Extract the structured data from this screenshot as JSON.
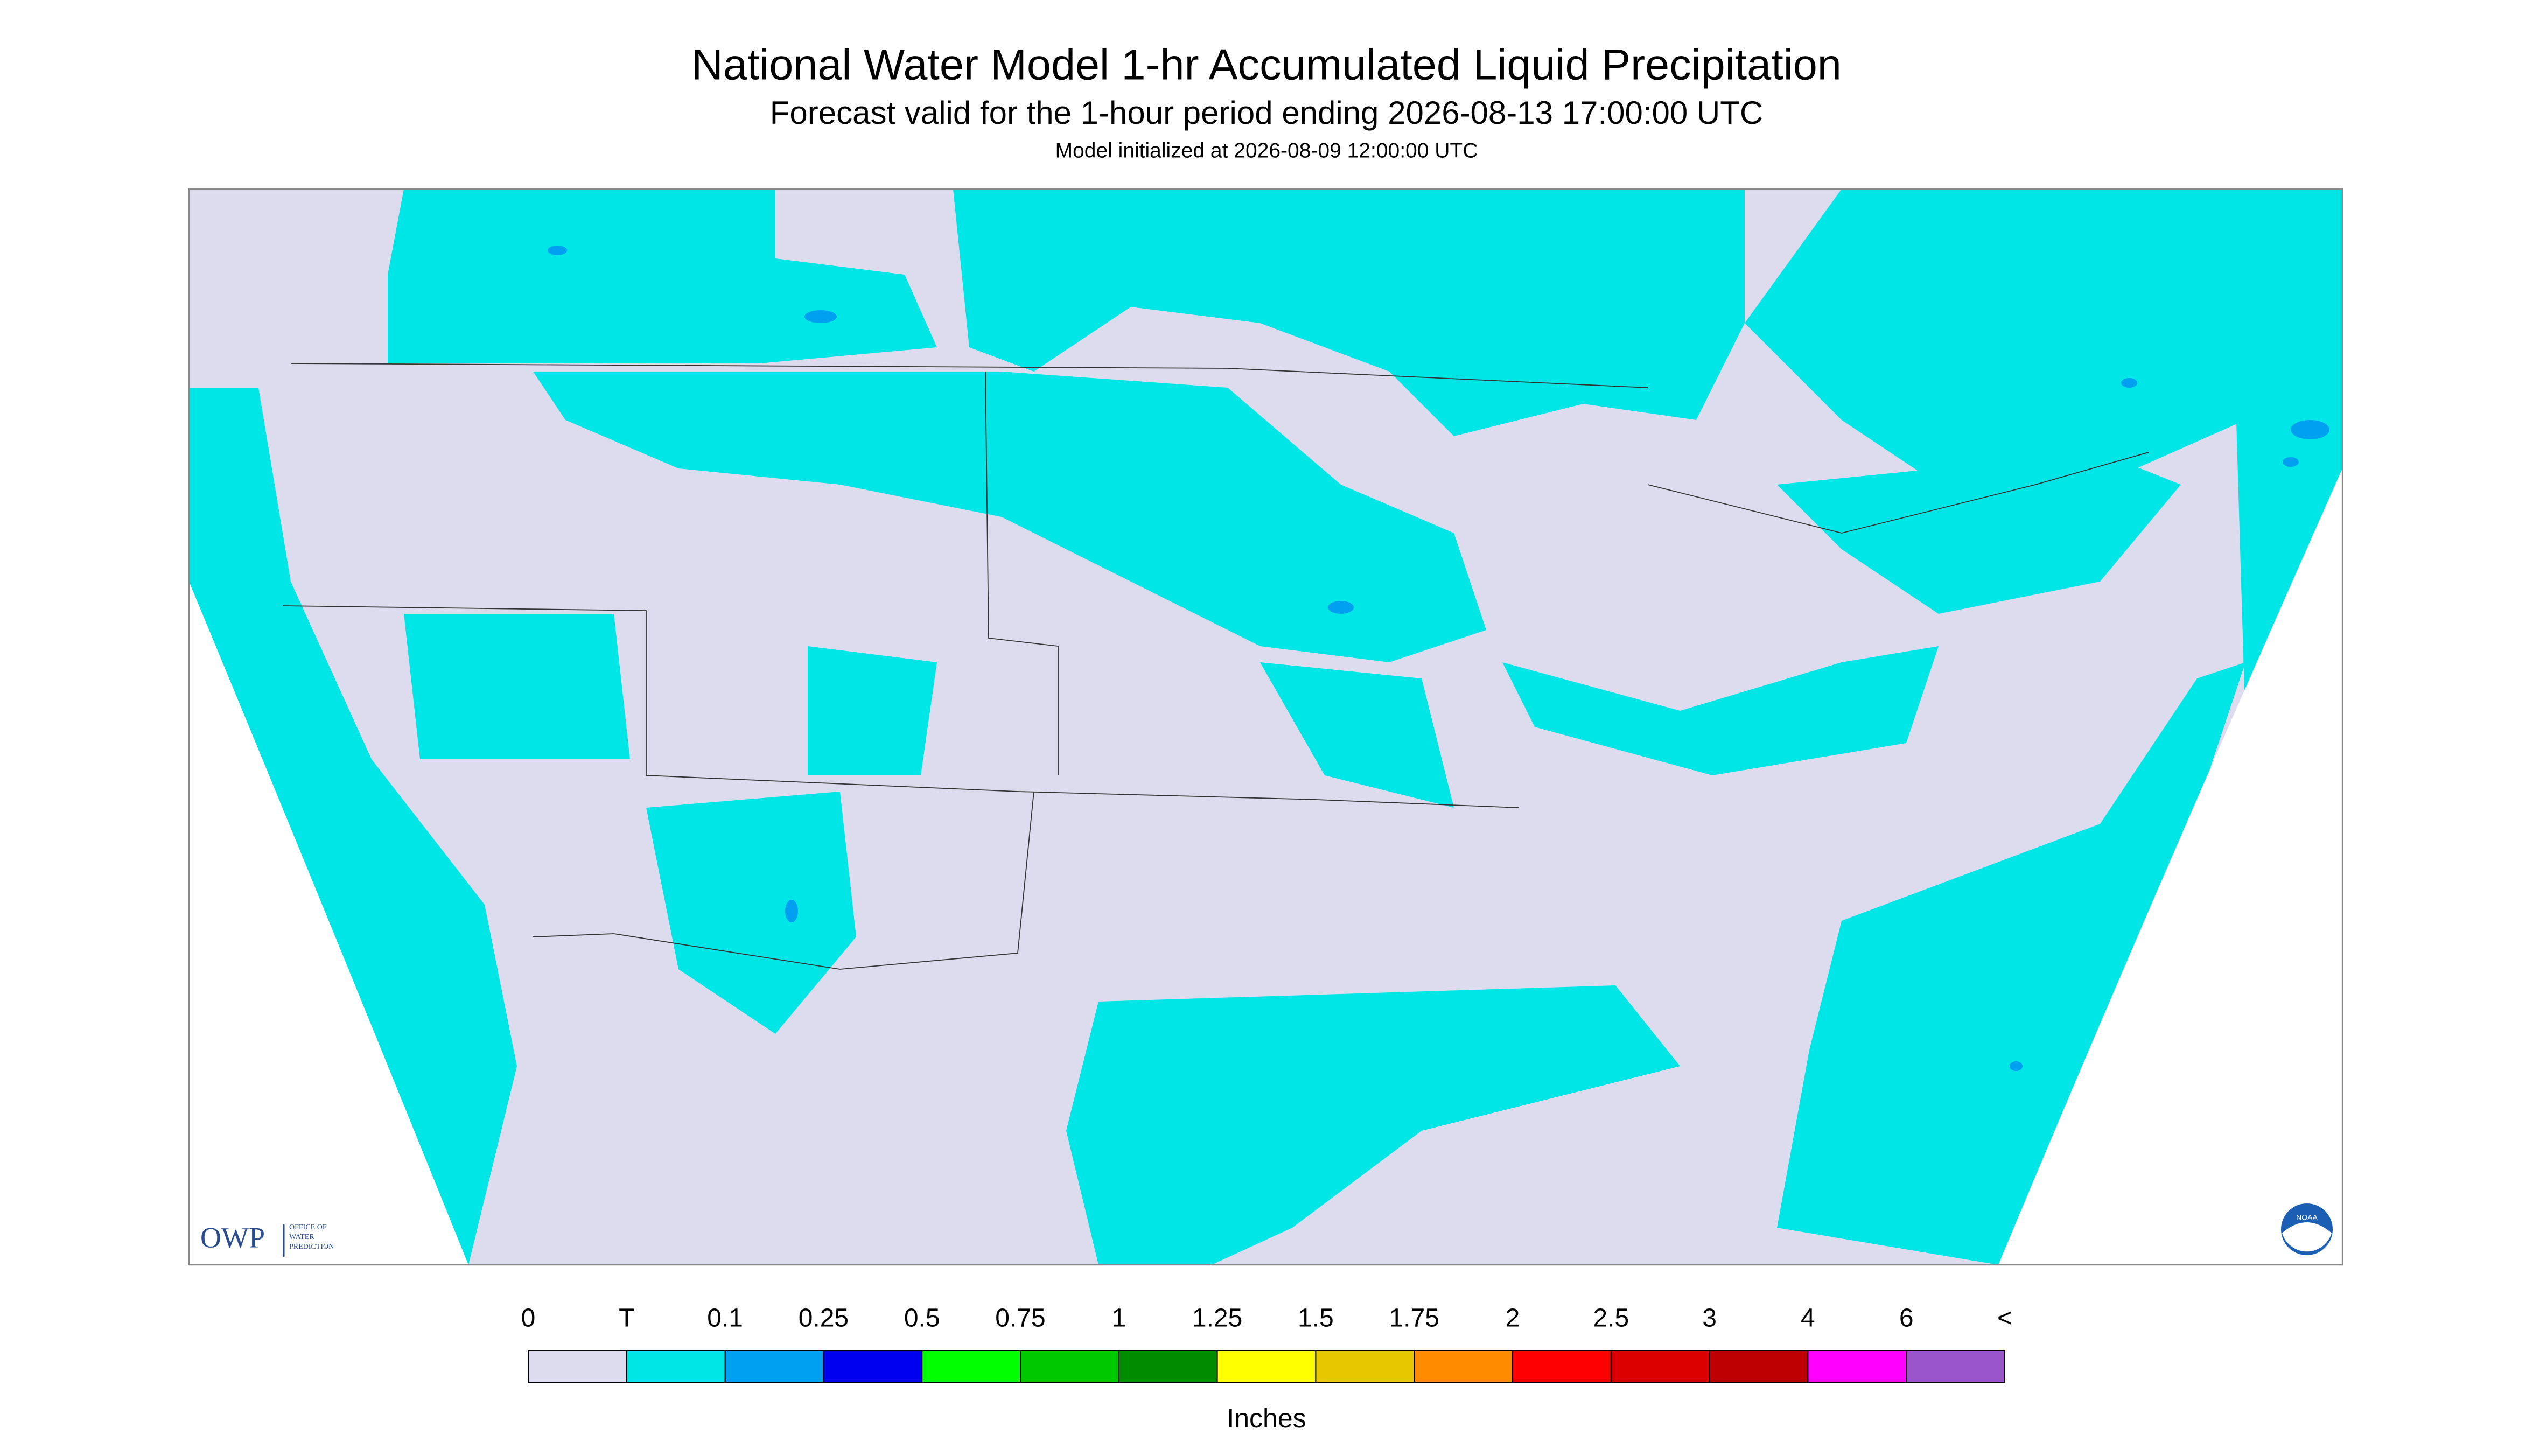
{
  "header": {
    "title": "National Water Model 1-hr Accumulated Liquid Precipitation",
    "subtitle": "Forecast valid for the 1-hour period ending 2026-08-13 17:00:00 UTC",
    "init": "Model initialized at 2026-08-09 12:00:00 UTC"
  },
  "legend": {
    "labels": [
      "0",
      "T",
      "0.1",
      "0.25",
      "0.5",
      "0.75",
      "1",
      "1.25",
      "1.5",
      "1.75",
      "2",
      "2.5",
      "3",
      "4",
      "6",
      "<"
    ],
    "colors": [
      "#dcdcee",
      "#00e6e6",
      "#00a0f0",
      "#0000f0",
      "#00ff00",
      "#00c800",
      "#008c00",
      "#ffff00",
      "#e6c800",
      "#ff8c00",
      "#ff0000",
      "#dc0000",
      "#be0000",
      "#ff00ff",
      "#9955c9"
    ],
    "unit": "Inches"
  },
  "logo": {
    "owp": "OWP",
    "office": [
      "OFFICE OF",
      "WATER",
      "PREDICTION"
    ],
    "noaa": "NOAA"
  }
}
